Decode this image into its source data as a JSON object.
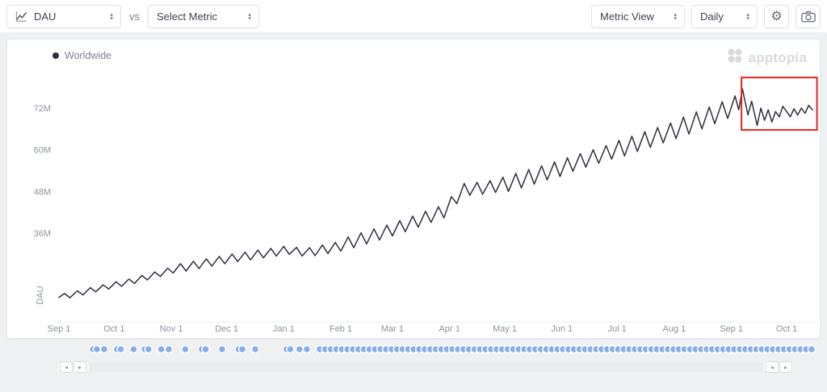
{
  "toolbar": {
    "primary_metric_label": "DAU",
    "vs_label": "vs",
    "compare_metric_label": "Select Metric",
    "metric_view_label": "Metric View",
    "granularity_label": "Daily",
    "settings_icon": "⚙",
    "chevron_up_icon": "▴",
    "chevron_down_icon": "▾"
  },
  "chart": {
    "legend_label": "Worldwide",
    "legend_dot_color": "#2e2f3e",
    "watermark": "apptopia",
    "line_color": "#2e2f3e",
    "event_dot_color": "#87aeec",
    "highlight_color": "#e0251f"
  },
  "chart_data": {
    "type": "line",
    "title": "",
    "xlabel": "",
    "ylabel": "DAU",
    "y_unit": "millions of daily active users",
    "grid": false,
    "legend_position": "top-left",
    "y_range": [
      10,
      83
    ],
    "x_range_days": [
      0,
      412
    ],
    "y_ticks": [
      {
        "value": 72,
        "label": "72M"
      },
      {
        "value": 60,
        "label": "60M"
      },
      {
        "value": 48,
        "label": "48M"
      },
      {
        "value": 36,
        "label": "36M"
      }
    ],
    "x_ticks": [
      {
        "day": 0,
        "label": "Sep 1"
      },
      {
        "day": 30,
        "label": "Oct 1"
      },
      {
        "day": 61,
        "label": "Nov 1"
      },
      {
        "day": 91,
        "label": "Dec 1"
      },
      {
        "day": 122,
        "label": "Jan 1"
      },
      {
        "day": 153,
        "label": "Feb 1"
      },
      {
        "day": 181,
        "label": "Mar 1"
      },
      {
        "day": 212,
        "label": "Apr 1"
      },
      {
        "day": 242,
        "label": "May 1"
      },
      {
        "day": 273,
        "label": "Jun 1"
      },
      {
        "day": 303,
        "label": "Jul 1"
      },
      {
        "day": 334,
        "label": "Aug 1"
      },
      {
        "day": 365,
        "label": "Sep 1"
      },
      {
        "day": 395,
        "label": "Oct 1"
      }
    ],
    "series": [
      {
        "name": "Worldwide",
        "points": [
          [
            0,
            17.5
          ],
          [
            3,
            18.6
          ],
          [
            6,
            17.4
          ],
          [
            10,
            19.4
          ],
          [
            13,
            18.2
          ],
          [
            17,
            20.3
          ],
          [
            20,
            19.1
          ],
          [
            24,
            21.1
          ],
          [
            27,
            19.9
          ],
          [
            31,
            22
          ],
          [
            34,
            20.7
          ],
          [
            38,
            22.8
          ],
          [
            41,
            21.5
          ],
          [
            45,
            23.8
          ],
          [
            48,
            22.5
          ],
          [
            52,
            24.8
          ],
          [
            55,
            23.5
          ],
          [
            59,
            25.9
          ],
          [
            62,
            24.5
          ],
          [
            66,
            27.2
          ],
          [
            69,
            25.1
          ],
          [
            73,
            27.9
          ],
          [
            76,
            25.8
          ],
          [
            80,
            28.6
          ],
          [
            83,
            26.5
          ],
          [
            87,
            29.3
          ],
          [
            90,
            27.2
          ],
          [
            94,
            30
          ],
          [
            97,
            27.8
          ],
          [
            101,
            30.5
          ],
          [
            104,
            28.3
          ],
          [
            108,
            31.1
          ],
          [
            111,
            28.9
          ],
          [
            115,
            31.6
          ],
          [
            118,
            29.4
          ],
          [
            122,
            32.2
          ],
          [
            125,
            29.9
          ],
          [
            129,
            31.9
          ],
          [
            132,
            29.4
          ],
          [
            136,
            31.8
          ],
          [
            139,
            29.5
          ],
          [
            143,
            32.6
          ],
          [
            146,
            30.1
          ],
          [
            150,
            33.3
          ],
          [
            153,
            30.8
          ],
          [
            157,
            34.9
          ],
          [
            160,
            31.8
          ],
          [
            164,
            36.1
          ],
          [
            167,
            32.9
          ],
          [
            171,
            37.2
          ],
          [
            174,
            34
          ],
          [
            178,
            38.3
          ],
          [
            181,
            35.2
          ],
          [
            185,
            39.6
          ],
          [
            188,
            36.4
          ],
          [
            192,
            40.9
          ],
          [
            195,
            37.7
          ],
          [
            199,
            42.3
          ],
          [
            202,
            39.1
          ],
          [
            206,
            43.6
          ],
          [
            209,
            40.4
          ],
          [
            213,
            46.5
          ],
          [
            216,
            44.5
          ],
          [
            220,
            50.3
          ],
          [
            223,
            46.9
          ],
          [
            227,
            50.6
          ],
          [
            230,
            47.2
          ],
          [
            234,
            51.1
          ],
          [
            237,
            47.7
          ],
          [
            241,
            52.1
          ],
          [
            244,
            48
          ],
          [
            248,
            53.2
          ],
          [
            251,
            49
          ],
          [
            255,
            54.3
          ],
          [
            258,
            50.1
          ],
          [
            262,
            55.4
          ],
          [
            265,
            51.3
          ],
          [
            269,
            56.5
          ],
          [
            272,
            52.3
          ],
          [
            276,
            57.7
          ],
          [
            279,
            53.8
          ],
          [
            283,
            58.9
          ],
          [
            286,
            55
          ],
          [
            290,
            60
          ],
          [
            293,
            56.1
          ],
          [
            297,
            61.2
          ],
          [
            300,
            57.3
          ],
          [
            304,
            62.7
          ],
          [
            307,
            58.2
          ],
          [
            311,
            63.9
          ],
          [
            314,
            59.5
          ],
          [
            318,
            65.2
          ],
          [
            321,
            60.7
          ],
          [
            325,
            66.4
          ],
          [
            328,
            62
          ],
          [
            332,
            67.7
          ],
          [
            335,
            63.2
          ],
          [
            339,
            69.4
          ],
          [
            342,
            64.5
          ],
          [
            346,
            70.9
          ],
          [
            349,
            66
          ],
          [
            353,
            72.3
          ],
          [
            356,
            67.5
          ],
          [
            360,
            73.8
          ],
          [
            363,
            69
          ],
          [
            367,
            75.5
          ],
          [
            369,
            71.5
          ],
          [
            371,
            77.5
          ],
          [
            374,
            70
          ],
          [
            376,
            74
          ],
          [
            379,
            67
          ],
          [
            381,
            72
          ],
          [
            383,
            68.5
          ],
          [
            385,
            71.5
          ],
          [
            387,
            68
          ],
          [
            389,
            71
          ],
          [
            391,
            69.5
          ],
          [
            393,
            72.5
          ],
          [
            395,
            71
          ],
          [
            397,
            69.5
          ],
          [
            399,
            71.8
          ],
          [
            401,
            70
          ],
          [
            403,
            72
          ],
          [
            405,
            70.5
          ],
          [
            407,
            72.8
          ],
          [
            409,
            71.5
          ]
        ]
      }
    ],
    "annotations": [
      {
        "type": "rect",
        "label": "recent-period-highlight",
        "day_start": 370.5,
        "day_end": 411.5,
        "value_min": 65.7,
        "value_max": 80.8,
        "color": "#e0251f"
      }
    ],
    "event_days": [
      19,
      21,
      25,
      32,
      34,
      41,
      47,
      49,
      56,
      60,
      69,
      78,
      80,
      89,
      98,
      100,
      107,
      124,
      126,
      131,
      135,
      142,
      145,
      148,
      151,
      154,
      157,
      160,
      163,
      166,
      169,
      172,
      175,
      178,
      181,
      184,
      187,
      190,
      193,
      196,
      199,
      202,
      205,
      208,
      211,
      214,
      217,
      220,
      223,
      226,
      229,
      232,
      235,
      238,
      241,
      244,
      247,
      250,
      253,
      256,
      259,
      262,
      265,
      268,
      271,
      274,
      277,
      280,
      283,
      286,
      289,
      292,
      295,
      298,
      301,
      304,
      307,
      310,
      313,
      316,
      319,
      322,
      325,
      328,
      331,
      334,
      337,
      340,
      343,
      346,
      349,
      352,
      355,
      358,
      361,
      364,
      367,
      370,
      373,
      376,
      379,
      382,
      385,
      388,
      391,
      394,
      397,
      400,
      403,
      406,
      409
    ]
  },
  "scrollbar": {
    "back_icon": "◂",
    "forward_icon": "▸"
  }
}
